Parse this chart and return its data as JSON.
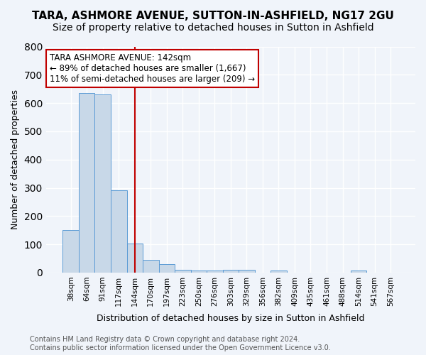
{
  "title": "TARA, ASHMORE AVENUE, SUTTON-IN-ASHFIELD, NG17 2GU",
  "subtitle": "Size of property relative to detached houses in Sutton in Ashfield",
  "xlabel": "Distribution of detached houses by size in Sutton in Ashfield",
  "ylabel": "Number of detached properties",
  "categories": [
    "38sqm",
    "64sqm",
    "91sqm",
    "117sqm",
    "144sqm",
    "170sqm",
    "197sqm",
    "223sqm",
    "250sqm",
    "276sqm",
    "303sqm",
    "329sqm",
    "356sqm",
    "382sqm",
    "409sqm",
    "435sqm",
    "461sqm",
    "488sqm",
    "514sqm",
    "541sqm",
    "567sqm"
  ],
  "values": [
    150,
    635,
    630,
    290,
    103,
    45,
    30,
    10,
    8,
    8,
    10,
    10,
    0,
    8,
    0,
    0,
    0,
    0,
    8,
    0,
    0
  ],
  "bar_color": "#c8d8e8",
  "bar_edge_color": "#5b9bd5",
  "vline_x": 4,
  "vline_color": "#c00000",
  "annotation_text": "TARA ASHMORE AVENUE: 142sqm\n← 89% of detached houses are smaller (1,667)\n11% of semi-detached houses are larger (209) →",
  "annotation_box_color": "white",
  "annotation_box_edge": "#c00000",
  "ylim": [
    0,
    800
  ],
  "yticks": [
    0,
    100,
    200,
    300,
    400,
    500,
    600,
    700,
    800
  ],
  "footer_text": "Contains HM Land Registry data © Crown copyright and database right 2024.\nContains public sector information licensed under the Open Government Licence v3.0.",
  "background_color": "#f0f4fa",
  "grid_color": "white",
  "title_fontsize": 11,
  "subtitle_fontsize": 10,
  "label_fontsize": 9,
  "tick_fontsize": 7.5,
  "footer_fontsize": 7
}
